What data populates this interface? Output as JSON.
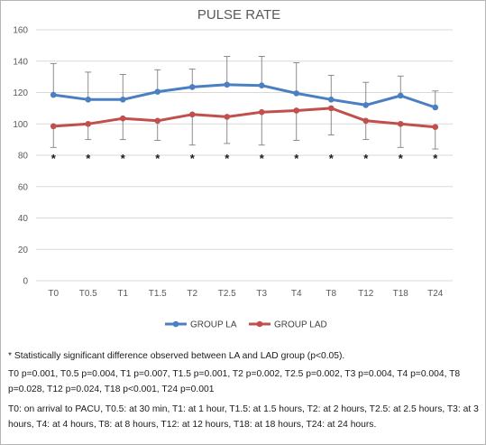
{
  "chart_data": {
    "type": "line",
    "title": "PULSE RATE",
    "categories": [
      "T0",
      "T0.5",
      "T1",
      "T1.5",
      "T2",
      "T2.5",
      "T3",
      "T4",
      "T8",
      "T12",
      "T18",
      "T24"
    ],
    "ylim": [
      0,
      160
    ],
    "yticks": [
      "0",
      "20",
      "40",
      "60",
      "80",
      "100",
      "120",
      "140",
      "160"
    ],
    "grid": "horizontal",
    "legend_position": "bottom",
    "significance_marker": "*",
    "series": [
      {
        "name": "GROUP LA",
        "color": "#4a7fc1",
        "values": [
          118.5,
          115.5,
          115.5,
          120.5,
          123.5,
          125,
          124.5,
          119.5,
          115.5,
          112,
          118,
          110.5
        ],
        "error": [
          20,
          17.5,
          16,
          14,
          11.5,
          18,
          18.5,
          19.5,
          15.5,
          14.5,
          12.5,
          10.5
        ]
      },
      {
        "name": "GROUP LAD",
        "color": "#c0504d",
        "values": [
          98.5,
          100,
          103.5,
          102,
          106,
          104.5,
          107.5,
          108.5,
          110,
          102,
          100,
          98
        ],
        "error": [
          13.5,
          10,
          13.5,
          12.5,
          19.5,
          17,
          21,
          19,
          17,
          12,
          15,
          14
        ]
      }
    ]
  },
  "notes": {
    "significance": "* Statistically significant difference observed between LA and LAD group (p<0.05).",
    "pvalues": "T0 p=0.001, T0.5 p=0.004, T1 p=0.007, T1.5 p=0.001, T2 p=0.002, T2.5 p=0.002, T3 p=0.004, T4 p=0.004, T8 p=0.028, T12 p=0.024, T18 p<0.001, T24 p=0.001",
    "timepoints": "T0: on arrival to PACU, T0.5: at 30 min, T1: at 1 hour, T1.5: at 1.5 hours, T2: at 2 hours, T2.5: at 2.5 hours, T3: at 3 hours, T4: at 4 hours, T8: at 8 hours, T12: at 12 hours, T18: at 18 hours, T24: at 24 hours."
  }
}
